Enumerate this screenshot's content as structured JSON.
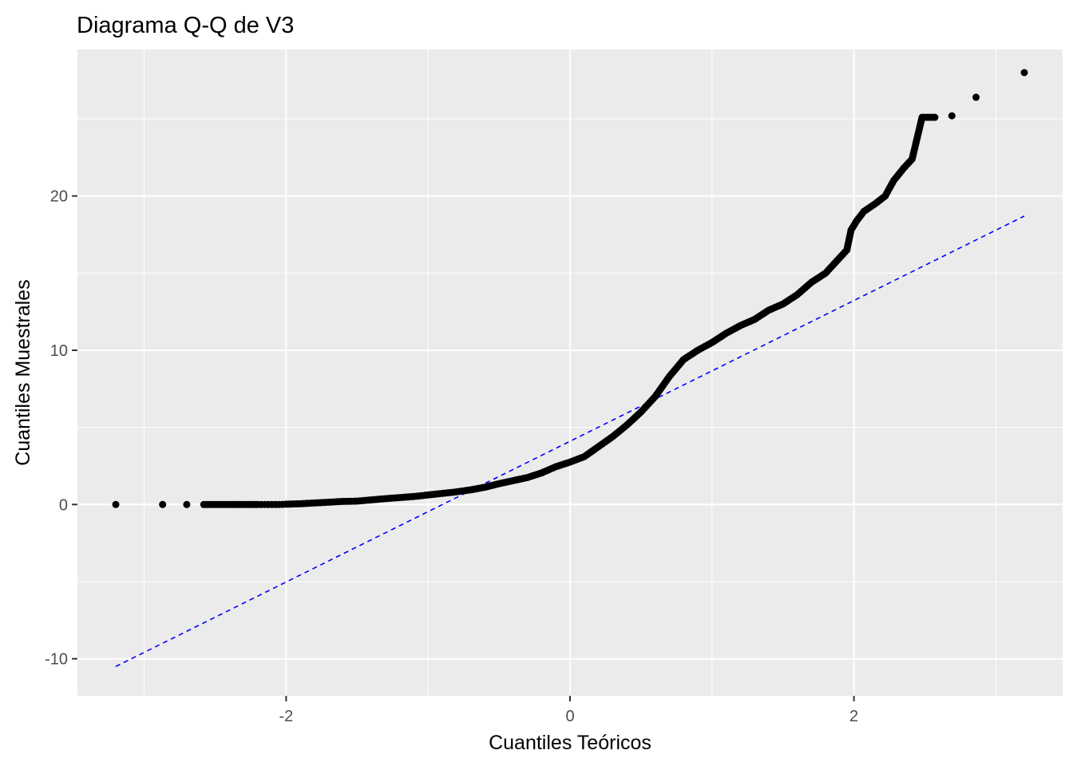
{
  "chart_data": {
    "type": "scatter",
    "title": "Diagrama Q-Q de V3",
    "xlabel": "Cuantiles Teóricos",
    "ylabel": "Cuantiles Muestrales",
    "xlim": [
      -3.47,
      3.47
    ],
    "ylim": [
      -12.4,
      29.5
    ],
    "x_ticks": [
      {
        "value": -2,
        "label": "-2"
      },
      {
        "value": 0,
        "label": "0"
      },
      {
        "value": 2,
        "label": "2"
      }
    ],
    "x_minor": [
      -3,
      -1,
      1,
      3
    ],
    "y_ticks": [
      {
        "value": -10,
        "label": "-10"
      },
      {
        "value": 0,
        "label": "0"
      },
      {
        "value": 10,
        "label": "10"
      },
      {
        "value": 20,
        "label": "20"
      }
    ],
    "y_minor": [
      -5,
      5,
      15,
      25
    ],
    "grid": true,
    "colors": {
      "panel": "#ebebeb",
      "grid": "#ffffff",
      "points": "#000000",
      "reference_line": "#0000ff"
    },
    "points": [
      [
        -3.2,
        0.0
      ],
      [
        -2.87,
        0.0
      ],
      [
        -2.7,
        0.0
      ],
      [
        -2.58,
        0.0
      ],
      [
        -2.48,
        0.0
      ],
      [
        -2.4,
        0.0
      ],
      [
        -2.33,
        0.0
      ],
      [
        -2.27,
        0.0
      ],
      [
        -2.2,
        0.0
      ],
      [
        -2.15,
        0.0
      ],
      [
        -2.1,
        0.0
      ],
      [
        -2.05,
        0.0
      ],
      [
        -2.0,
        0.02
      ],
      [
        -1.9,
        0.05
      ],
      [
        -1.8,
        0.1
      ],
      [
        -1.7,
        0.15
      ],
      [
        -1.6,
        0.2
      ],
      [
        -1.5,
        0.22
      ],
      [
        -1.4,
        0.3
      ],
      [
        -1.3,
        0.38
      ],
      [
        -1.2,
        0.45
      ],
      [
        -1.1,
        0.52
      ],
      [
        -1.0,
        0.62
      ],
      [
        -0.9,
        0.72
      ],
      [
        -0.8,
        0.82
      ],
      [
        -0.7,
        0.95
      ],
      [
        -0.6,
        1.12
      ],
      [
        -0.5,
        1.35
      ],
      [
        -0.4,
        1.55
      ],
      [
        -0.3,
        1.75
      ],
      [
        -0.2,
        2.05
      ],
      [
        -0.1,
        2.45
      ],
      [
        0.0,
        2.75
      ],
      [
        0.1,
        3.1
      ],
      [
        0.2,
        3.75
      ],
      [
        0.3,
        4.4
      ],
      [
        0.4,
        5.15
      ],
      [
        0.5,
        6.0
      ],
      [
        0.6,
        7.0
      ],
      [
        0.7,
        8.3
      ],
      [
        0.8,
        9.4
      ],
      [
        0.9,
        10.0
      ],
      [
        1.0,
        10.5
      ],
      [
        1.1,
        11.1
      ],
      [
        1.2,
        11.6
      ],
      [
        1.3,
        12.0
      ],
      [
        1.4,
        12.6
      ],
      [
        1.5,
        13.0
      ],
      [
        1.6,
        13.6
      ],
      [
        1.7,
        14.4
      ],
      [
        1.8,
        15.0
      ],
      [
        1.9,
        16.0
      ],
      [
        1.95,
        16.5
      ],
      [
        1.98,
        17.8
      ],
      [
        2.02,
        18.4
      ],
      [
        2.07,
        19.0
      ],
      [
        2.15,
        19.5
      ],
      [
        2.22,
        20.0
      ],
      [
        2.28,
        21.0
      ],
      [
        2.35,
        21.8
      ],
      [
        2.41,
        22.4
      ],
      [
        2.48,
        25.1
      ],
      [
        2.57,
        25.1
      ],
      [
        2.69,
        25.2
      ],
      [
        2.86,
        26.4
      ],
      [
        3.2,
        28.0
      ]
    ],
    "reference_line": [
      [
        -3.2,
        -10.5
      ],
      [
        3.2,
        18.7
      ]
    ]
  }
}
